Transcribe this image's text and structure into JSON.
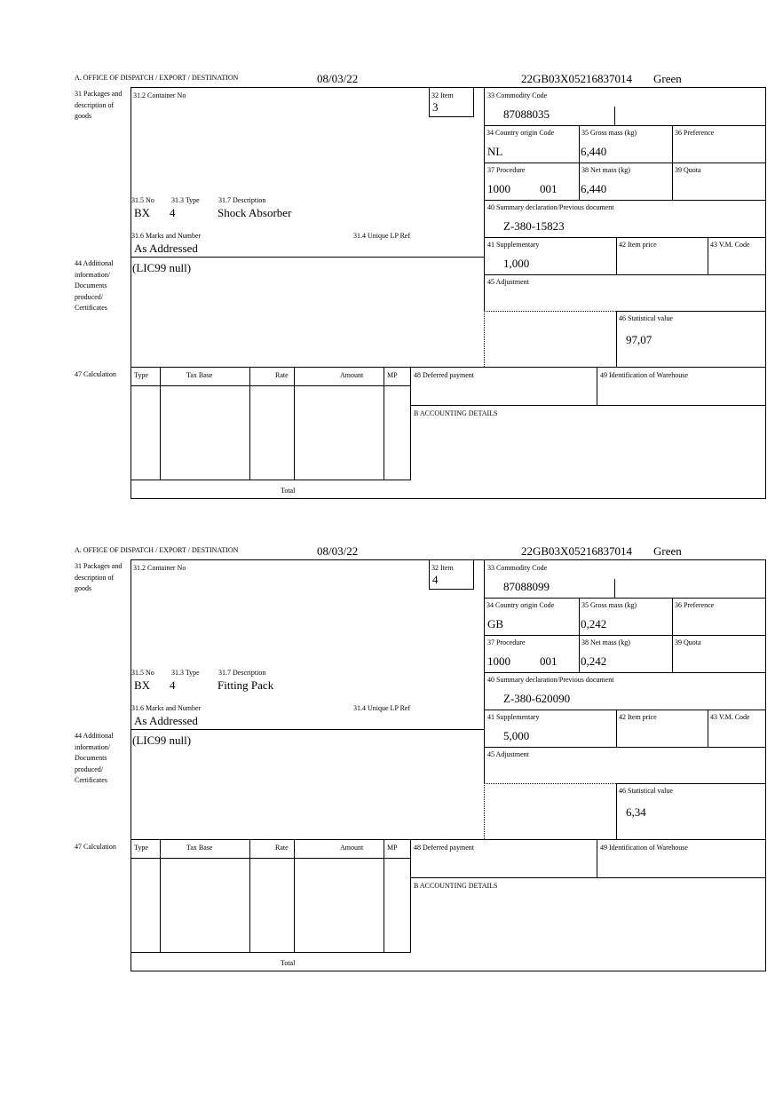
{
  "labels": {
    "office": "A. OFFICE OF DISPATCH / EXPORT / DESTINATION",
    "packages": "31 Packages and description of goods",
    "container": "31.2 Container No",
    "item": "32 Item",
    "no": "31.5 No",
    "type": "31.3 Type",
    "description": "31.7 Description",
    "marks": "31.6 Marks and Number",
    "unique_ref": "31.4 Unique LP Ref",
    "commodity": "33 Commodity Code",
    "country": "34 Country origin Code",
    "gross": "35 Gross mass (kg)",
    "preference": "36 Preference",
    "procedure": "37 Procedure",
    "net": "38 Net mass (kg)",
    "quota": "39 Quota",
    "summary": "40 Summary declaration/Previous document",
    "supplementary": "41 Supplementary",
    "item_price": "42 Item price",
    "vm_code": "43 V.M. Code",
    "additional": "44 Additional information/ Documents produced/ Certificates",
    "adjustment": "45 Adjustment",
    "statistical": "46 Statistical value",
    "calculation": "47 Calculation",
    "calc_type": "Type",
    "tax_base": "Tax Base",
    "rate": "Rate",
    "amount": "Amount",
    "mp": "MP",
    "total": "Total",
    "deferred": "48 Deferred payment",
    "warehouse": "49 Identification of Warehouse",
    "accounting": "B ACCOUNTING DETAILS"
  },
  "forms": [
    {
      "date": "08/03/22",
      "reference": "22GB03X05216837014",
      "route": "Green",
      "item": "3",
      "no": "BX",
      "type": "4",
      "description": "Shock Absorber",
      "marks": "As Addressed",
      "commodity": "87088035",
      "country": "NL",
      "gross": "6,440",
      "procedure": "1000",
      "procedure_extra": "001",
      "net": "6,440",
      "summary": "Z-380-15823",
      "supplementary": "1,000",
      "additional": "(LIC99 null)",
      "statistical": "97,07"
    },
    {
      "date": "08/03/22",
      "reference": "22GB03X05216837014",
      "route": "Green",
      "item": "4",
      "no": "BX",
      "type": "4",
      "description": "Fitting Pack",
      "marks": "As Addressed",
      "commodity": "87088099",
      "country": "GB",
      "gross": "0,242",
      "procedure": "1000",
      "procedure_extra": "001",
      "net": "0,242",
      "summary": "Z-380-620090",
      "supplementary": "5,000",
      "additional": "(LIC99 null)",
      "statistical": "6,34"
    }
  ]
}
